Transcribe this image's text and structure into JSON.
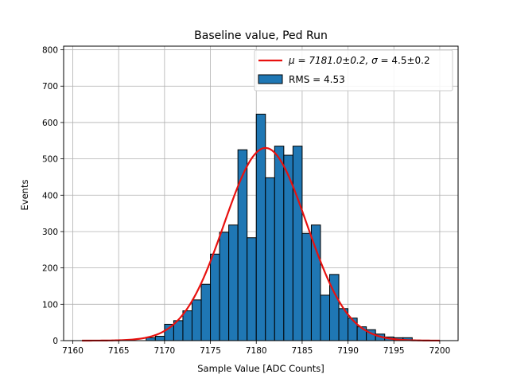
{
  "chart_data": {
    "type": "bar",
    "title": "Baseline value, Ped Run",
    "xlabel": "Sample Value [ADC Counts]",
    "ylabel": "Events",
    "xlim": [
      7159,
      7202
    ],
    "ylim": [
      0,
      810
    ],
    "xticks": [
      7160,
      7165,
      7170,
      7175,
      7180,
      7185,
      7190,
      7195,
      7200
    ],
    "yticks": [
      0,
      100,
      200,
      300,
      400,
      500,
      600,
      700,
      800
    ],
    "grid": true,
    "legend_position": "top-right",
    "bar_color": "#1f77b4",
    "fit_color": "#e8110f",
    "histogram": {
      "name": "RMS = 4.53",
      "bin_width": 1,
      "x": [
        7168,
        7169,
        7170,
        7171,
        7172,
        7173,
        7174,
        7175,
        7176,
        7177,
        7178,
        7179,
        7180,
        7181,
        7182,
        7183,
        7184,
        7185,
        7186,
        7187,
        7188,
        7189,
        7190,
        7191,
        7192,
        7193,
        7194,
        7195,
        7196
      ],
      "values": [
        8,
        12,
        45,
        55,
        82,
        112,
        155,
        238,
        298,
        318,
        525,
        283,
        623,
        448,
        535,
        510,
        535,
        295,
        318,
        125,
        182,
        88,
        62,
        38,
        30,
        18,
        10,
        8,
        8
      ]
    },
    "fit": {
      "name_prefix": "μ = 7181.0±0.2, ",
      "name_sigma": "σ",
      "name_suffix": " = 4.5±0.2",
      "type": "gaussian",
      "mu": 7181.0,
      "sigma": 4.5,
      "amplitude": 530,
      "x_range": [
        7161,
        7200
      ]
    }
  }
}
